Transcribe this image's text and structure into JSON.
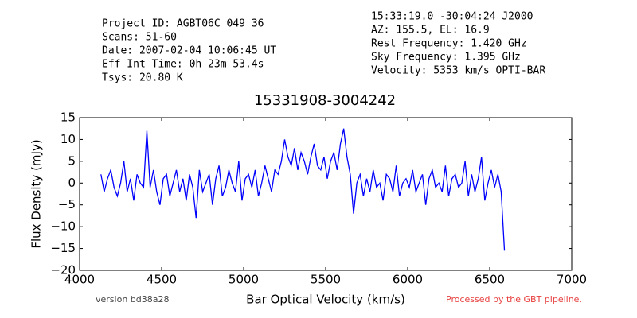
{
  "chart_data": {
    "type": "line",
    "header_left": [
      "Project ID: AGBT06C_049_36",
      "Scans: 51-60",
      "Date: 2007-02-04 10:06:45 UT",
      "Eff Int Time: 0h 23m 53.4s",
      "Tsys: 20.80 K"
    ],
    "header_right": [
      "15:33:19.0 -30:04:24 J2000",
      "AZ: 155.5, EL: 16.9",
      "Rest Frequency:   1.420 GHz",
      "Sky Frequency:    1.395 GHz",
      "Velocity: 5353 km/s OPTI-BAR"
    ],
    "title": "15331908-3004242",
    "x_label": "Bar Optical Velocity (km/s)",
    "y_label": "Flux Density (mJy)",
    "footer_left": "version bd38a28",
    "footer_right": "Processed by the GBT pipeline.",
    "xlim": [
      4000,
      7000
    ],
    "xticks": [
      4000,
      4500,
      5000,
      5500,
      6000,
      6500,
      7000
    ],
    "ylim": [
      -20,
      15
    ],
    "yticks": [
      {
        "value": -20,
        "label": "−20"
      },
      {
        "value": -15,
        "label": "−15"
      },
      {
        "value": -10,
        "label": "−10"
      },
      {
        "value": -5,
        "label": "−5"
      },
      0,
      5,
      10,
      15
    ],
    "series": [
      {
        "color": "#0000ff",
        "x": [
          4130,
          4150,
          4170,
          4190,
          4210,
          4230,
          4250,
          4270,
          4290,
          4310,
          4330,
          4350,
          4370,
          4390,
          4410,
          4430,
          4450,
          4470,
          4490,
          4510,
          4530,
          4550,
          4570,
          4590,
          4610,
          4630,
          4650,
          4670,
          4690,
          4710,
          4730,
          4750,
          4770,
          4790,
          4810,
          4830,
          4850,
          4870,
          4890,
          4910,
          4930,
          4950,
          4970,
          4990,
          5010,
          5030,
          5050,
          5070,
          5090,
          5110,
          5130,
          5150,
          5170,
          5190,
          5210,
          5230,
          5250,
          5270,
          5290,
          5310,
          5330,
          5350,
          5370,
          5390,
          5410,
          5430,
          5450,
          5470,
          5490,
          5510,
          5530,
          5550,
          5570,
          5590,
          5610,
          5630,
          5650,
          5670,
          5690,
          5710,
          5730,
          5750,
          5770,
          5790,
          5810,
          5830,
          5850,
          5870,
          5890,
          5910,
          5930,
          5950,
          5970,
          5990,
          6010,
          6030,
          6050,
          6070,
          6090,
          6110,
          6130,
          6150,
          6170,
          6190,
          6210,
          6230,
          6250,
          6270,
          6290,
          6310,
          6330,
          6350,
          6370,
          6390,
          6410,
          6430,
          6450,
          6470,
          6490,
          6510,
          6530,
          6550,
          6570,
          6590
        ],
        "values": [
          2,
          -2,
          1,
          3,
          -1,
          -3,
          0,
          5,
          -2,
          1,
          -4,
          2,
          0,
          -1,
          12,
          -1,
          3,
          -2,
          -5,
          1,
          2,
          -3,
          0,
          3,
          -2,
          1,
          -4,
          2,
          -1,
          -8,
          3,
          -2,
          0,
          2,
          -5,
          1,
          4,
          -3,
          -1,
          3,
          0,
          -2,
          5,
          -4,
          1,
          2,
          -1,
          3,
          -3,
          0,
          4,
          1,
          -2,
          3,
          2,
          5,
          10,
          6,
          4,
          8,
          3,
          7,
          5,
          2,
          6,
          9,
          4,
          3,
          6,
          1,
          5,
          7,
          3,
          9,
          12.5,
          6,
          2,
          -7,
          0,
          2,
          -3,
          1,
          -2,
          3,
          -1,
          0,
          -4,
          2,
          1,
          -2,
          4,
          -3,
          0,
          1,
          -1,
          3,
          -2,
          0,
          2,
          -5,
          1,
          3,
          -1,
          0,
          -2,
          4,
          -3,
          1,
          2,
          -1,
          0,
          5,
          -3,
          2,
          -2,
          1,
          6,
          -4,
          0,
          3,
          -1,
          2,
          -2,
          -15.5
        ]
      }
    ]
  }
}
